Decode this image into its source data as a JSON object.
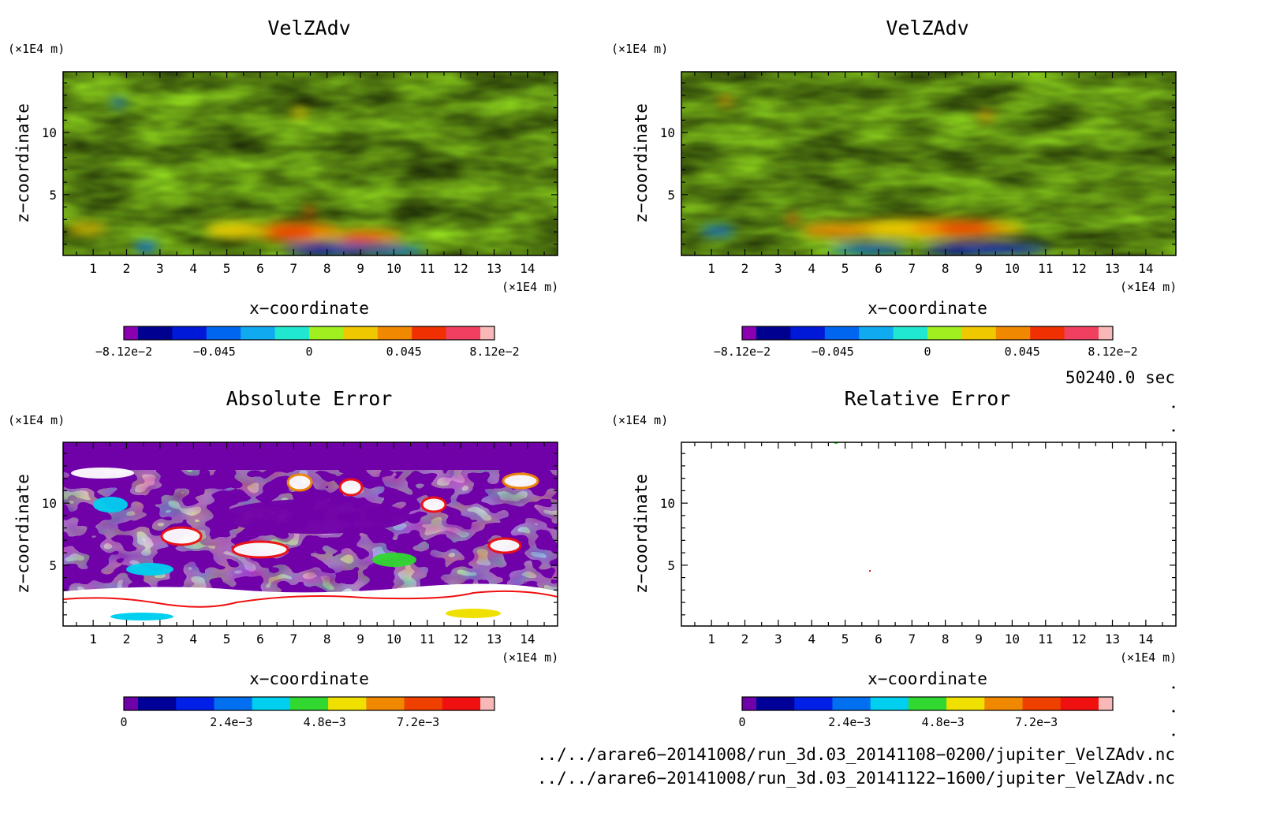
{
  "panels": [
    {
      "title": "VelZAdv",
      "field": "velocity",
      "xlabel": "x−coordinate",
      "ylabel": "z−coordinate",
      "x_unit": "(×1E4 m)",
      "y_unit": "(×1E4 m)",
      "cbar_labels": [
        "−8.12e−2",
        "−0.045",
        "0",
        "0.045",
        "8.12e−2"
      ]
    },
    {
      "title": "VelZAdv",
      "field": "velocity",
      "xlabel": "x−coordinate",
      "ylabel": "z−coordinate",
      "x_unit": "(×1E4 m)",
      "y_unit": "(×1E4 m)",
      "cbar_labels": [
        "−8.12e−2",
        "−0.045",
        "0",
        "0.045",
        "8.12e−2"
      ]
    },
    {
      "title": "Absolute Error",
      "field": "abs_error",
      "xlabel": "x−coordinate",
      "ylabel": "z−coordinate",
      "x_unit": "(×1E4 m)",
      "y_unit": "(×1E4 m)",
      "cbar_labels": [
        "0",
        "2.4e−3",
        "4.8e−3",
        "7.2e−3"
      ]
    },
    {
      "title": "Relative Error",
      "field": "rel_error",
      "xlabel": "x−coordinate",
      "ylabel": "z−coordinate",
      "x_unit": "(×1E4 m)",
      "y_unit": "(×1E4 m)",
      "cbar_labels": [
        "0",
        "2.4e−3",
        "4.8e−3",
        "7.2e−3"
      ]
    }
  ],
  "time_label": "50240.0 sec",
  "file_paths": [
    "../../arare6−20141008/run_3d.03_20141108−0200/jupiter_VelZAdv.nc",
    "../../arare6−20141008/run_3d.03_20141122−1600/jupiter_VelZAdv.nc"
  ],
  "colors": {
    "velocity_scale": [
      "#8a00b0",
      "#000090",
      "#0018d8",
      "#0066f0",
      "#10aaf0",
      "#20e8d0",
      "#a0f020",
      "#f0c800",
      "#f08800",
      "#f03000",
      "#f04060",
      "#f8b8b8"
    ],
    "error_scale": [
      "#7000a8",
      "#000098",
      "#0020e8",
      "#0070f0",
      "#00d0f0",
      "#30d830",
      "#f0e000",
      "#f08800",
      "#f04000",
      "#f01010",
      "#f8b8b8"
    ]
  },
  "chart_data": [
    {
      "type": "heatmap",
      "title": "VelZAdv",
      "xlabel": "x−coordinate",
      "ylabel": "z−coordinate",
      "x_ticks": [
        1,
        2,
        3,
        4,
        5,
        6,
        7,
        8,
        9,
        10,
        11,
        12,
        13,
        14
      ],
      "y_ticks": [
        5,
        10
      ],
      "xlim": [
        0.1,
        14.9
      ],
      "ylim": [
        0.1,
        14.9
      ],
      "colorbar": {
        "min": -0.0812,
        "max": 0.0812,
        "tick_values": [
          -0.0812,
          -0.045,
          0,
          0.045,
          0.0812
        ]
      },
      "features": [
        {
          "kind": "positive_max",
          "x": 7.0,
          "z": 2.3,
          "value": 0.07
        },
        {
          "kind": "positive",
          "x": 9.0,
          "z": 1.5,
          "value": 0.06
        },
        {
          "kind": "negative_min",
          "x": 9.0,
          "z": 0.5,
          "value": -0.07
        },
        {
          "kind": "negative",
          "x": 2.6,
          "z": 1.0,
          "value": -0.05
        }
      ]
    },
    {
      "type": "heatmap",
      "title": "VelZAdv",
      "xlabel": "x−coordinate",
      "ylabel": "z−coordinate",
      "x_ticks": [
        1,
        2,
        3,
        4,
        5,
        6,
        7,
        8,
        9,
        10,
        11,
        12,
        13,
        14
      ],
      "y_ticks": [
        5,
        10
      ],
      "xlim": [
        0.1,
        14.9
      ],
      "ylim": [
        0.1,
        14.9
      ],
      "colorbar": {
        "min": -0.0812,
        "max": 0.0812,
        "tick_values": [
          -0.0812,
          -0.045,
          0,
          0.045,
          0.0812
        ]
      },
      "features": [
        {
          "kind": "positive_max",
          "x": 8.9,
          "z": 2.2,
          "value": 0.07
        },
        {
          "kind": "negative_min",
          "x": 8.3,
          "z": 0.3,
          "value": -0.07
        },
        {
          "kind": "negative",
          "x": 1.0,
          "z": 2.0,
          "value": -0.05
        }
      ]
    },
    {
      "type": "heatmap",
      "title": "Absolute Error",
      "xlabel": "x−coordinate",
      "ylabel": "z−coordinate",
      "x_ticks": [
        1,
        2,
        3,
        4,
        5,
        6,
        7,
        8,
        9,
        10,
        11,
        12,
        13,
        14
      ],
      "y_ticks": [
        5,
        10
      ],
      "xlim": [
        0.1,
        14.9
      ],
      "ylim": [
        0.1,
        14.9
      ],
      "colorbar": {
        "min": 0,
        "max": 0.0088,
        "tick_values": [
          0,
          0.0024,
          0.0048,
          0.0072
        ]
      },
      "notes": "near-zero above z=12.5; exceeds scale (white) in large areas below z=3"
    },
    {
      "type": "heatmap",
      "title": "Relative Error",
      "xlabel": "x−coordinate",
      "ylabel": "z−coordinate",
      "x_ticks": [
        1,
        2,
        3,
        4,
        5,
        6,
        7,
        8,
        9,
        10,
        11,
        12,
        13,
        14
      ],
      "y_ticks": [
        5,
        10
      ],
      "xlim": [
        0.1,
        14.9
      ],
      "ylim": [
        0.1,
        14.9
      ],
      "colorbar": {
        "min": 0,
        "max": 0.0088,
        "tick_values": [
          0,
          0.0024,
          0.0048,
          0.0072
        ]
      },
      "notes": "values exceed colour scale almost everywhere (white)"
    }
  ]
}
